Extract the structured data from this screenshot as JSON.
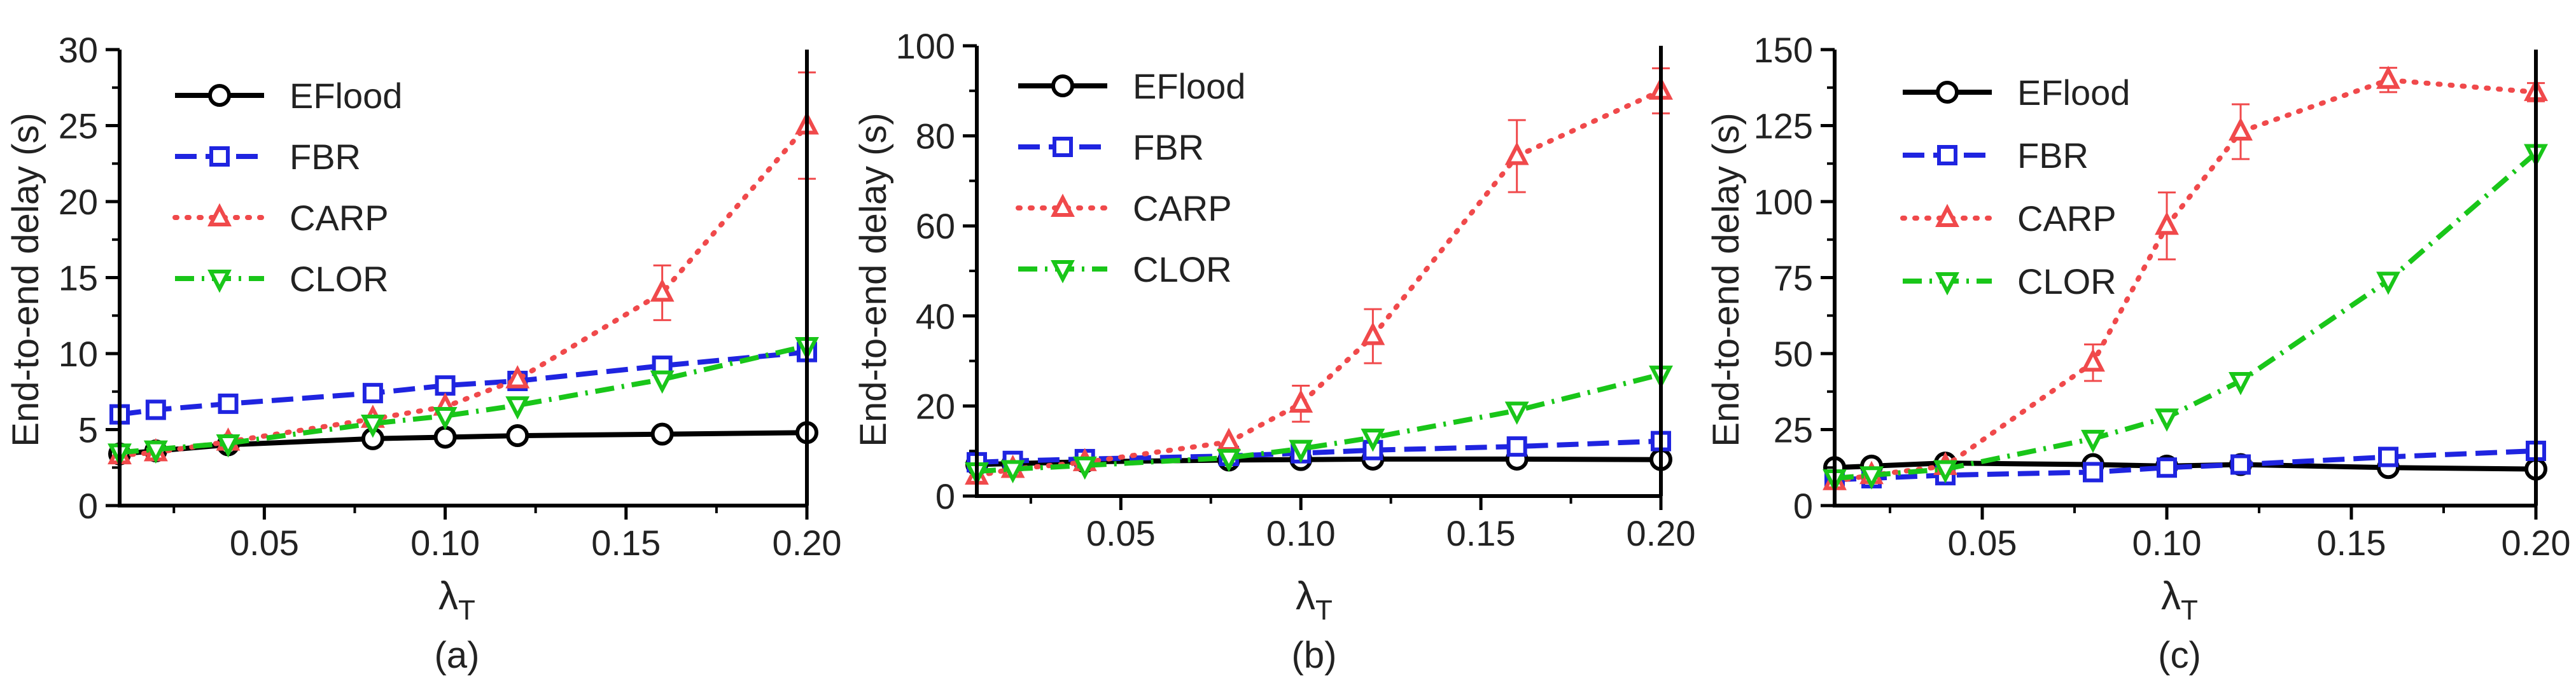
{
  "colors": {
    "EFlood": "#000000",
    "FBR": "#1f24e0",
    "CARP": "#f0494b",
    "CLOR": "#19c619",
    "axis": "#000000"
  },
  "chart_data": [
    {
      "type": "line",
      "panel_label": "(a)",
      "xlabel": "λ",
      "xlabel_sub": "T",
      "ylabel": "End-to-end delay (s)",
      "xlim": [
        0.01,
        0.2
      ],
      "ylim": [
        0,
        30
      ],
      "xticks": [
        0.05,
        0.1,
        0.15,
        0.2
      ],
      "xtick_labels": [
        "0.05",
        "0.10",
        "0.15",
        "0.20"
      ],
      "yticks": [
        0,
        5,
        10,
        15,
        20,
        25,
        30
      ],
      "ytick_labels": [
        "0",
        "5",
        "10",
        "15",
        "20",
        "25",
        "30"
      ],
      "legend_position": "top-left",
      "x": [
        0.01,
        0.02,
        0.04,
        0.08,
        0.1,
        0.12,
        0.16,
        0.2
      ],
      "series": [
        {
          "name": "EFlood",
          "marker": "circle",
          "dash": "solid",
          "values": [
            3.4,
            3.6,
            4.0,
            4.4,
            4.5,
            4.6,
            4.7,
            4.8
          ],
          "errors": [
            0,
            0,
            0,
            0,
            0,
            0,
            0,
            0
          ]
        },
        {
          "name": "FBR",
          "marker": "square",
          "dash": "dashed",
          "values": [
            6.0,
            6.3,
            6.7,
            7.4,
            7.9,
            8.2,
            9.2,
            10.1
          ],
          "errors": [
            0,
            0,
            0,
            0,
            0,
            0,
            0,
            0
          ]
        },
        {
          "name": "CARP",
          "marker": "triangle-up",
          "dash": "dotted",
          "values": [
            3.3,
            3.5,
            4.2,
            5.7,
            6.5,
            8.3,
            14.0,
            25.0
          ],
          "errors": [
            0,
            0,
            0,
            0,
            0,
            0,
            1.8,
            3.5
          ]
        },
        {
          "name": "CLOR",
          "marker": "triangle-down",
          "dash": "dashdot",
          "values": [
            3.5,
            3.7,
            4.1,
            5.4,
            5.9,
            6.6,
            8.3,
            10.5
          ],
          "errors": [
            0,
            0,
            0,
            0,
            0,
            0,
            0,
            0
          ]
        }
      ]
    },
    {
      "type": "line",
      "panel_label": "(b)",
      "xlabel": "λ",
      "xlabel_sub": "T",
      "ylabel": "End-to-end delay (s)",
      "xlim": [
        0.01,
        0.2
      ],
      "ylim": [
        0,
        100
      ],
      "xticks": [
        0.05,
        0.1,
        0.15,
        0.2
      ],
      "xtick_labels": [
        "0.05",
        "0.10",
        "0.15",
        "0.20"
      ],
      "yticks": [
        0,
        20,
        40,
        60,
        80,
        100
      ],
      "ytick_labels": [
        "0",
        "20",
        "40",
        "60",
        "80",
        "100"
      ],
      "legend_position": "top-left",
      "x": [
        0.01,
        0.02,
        0.04,
        0.08,
        0.1,
        0.12,
        0.16,
        0.2
      ],
      "series": [
        {
          "name": "EFlood",
          "marker": "circle",
          "dash": "solid",
          "values": [
            7.0,
            7.2,
            7.6,
            8.0,
            8.1,
            8.2,
            8.2,
            8.1
          ],
          "errors": [
            0,
            0,
            0,
            0,
            0,
            0,
            0,
            0
          ]
        },
        {
          "name": "FBR",
          "marker": "square",
          "dash": "dashed",
          "values": [
            7.5,
            7.8,
            8.2,
            8.9,
            9.5,
            10.2,
            11.0,
            12.2
          ],
          "errors": [
            0,
            0,
            0,
            0,
            0,
            0,
            0,
            0
          ]
        },
        {
          "name": "CARP",
          "marker": "triangle-up",
          "dash": "dotted",
          "values": [
            4.5,
            6.0,
            7.5,
            12.0,
            20.5,
            35.5,
            75.5,
            90.0
          ],
          "errors": [
            0,
            0,
            0,
            0,
            4.0,
            6.0,
            8.0,
            5.0
          ]
        },
        {
          "name": "CLOR",
          "marker": "triangle-down",
          "dash": "dashdot",
          "values": [
            5.5,
            6.0,
            6.8,
            8.5,
            10.5,
            13.0,
            19.0,
            27.0
          ],
          "errors": [
            0,
            0,
            0,
            0,
            0,
            0,
            0,
            0
          ]
        }
      ]
    },
    {
      "type": "line",
      "panel_label": "(c)",
      "xlabel": "λ",
      "xlabel_sub": "T",
      "ylabel": "End-to-end delay (s)",
      "xlim": [
        0.01,
        0.2
      ],
      "ylim": [
        0,
        150
      ],
      "xticks": [
        0.05,
        0.1,
        0.15,
        0.2
      ],
      "xtick_labels": [
        "0.05",
        "0.10",
        "0.15",
        "0.20"
      ],
      "yticks": [
        0,
        25,
        50,
        75,
        100,
        125,
        150
      ],
      "ytick_labels": [
        "0",
        "25",
        "50",
        "75",
        "100",
        "125",
        "150"
      ],
      "legend_position": "top-left",
      "x": [
        0.01,
        0.02,
        0.04,
        0.08,
        0.1,
        0.12,
        0.16,
        0.2
      ],
      "series": [
        {
          "name": "EFlood",
          "marker": "circle",
          "dash": "solid",
          "values": [
            12.5,
            13.0,
            14.0,
            13.5,
            13.0,
            13.5,
            12.5,
            12.0
          ],
          "errors": [
            0,
            0,
            0,
            0,
            0,
            0,
            0,
            0
          ]
        },
        {
          "name": "FBR",
          "marker": "square",
          "dash": "dashed",
          "values": [
            8.5,
            9.0,
            10.0,
            11.0,
            12.5,
            13.5,
            16.0,
            18.0
          ],
          "errors": [
            0,
            0,
            0,
            0,
            0,
            0,
            0,
            0
          ]
        },
        {
          "name": "CARP",
          "marker": "triangle-up",
          "dash": "dotted",
          "values": [
            8.0,
            10.0,
            13.0,
            47.0,
            92.0,
            123.0,
            140.0,
            136.0
          ],
          "errors": [
            0,
            0,
            0,
            6.0,
            11.0,
            9.0,
            4.0,
            3.0
          ]
        },
        {
          "name": "CLOR",
          "marker": "triangle-down",
          "dash": "dashdot",
          "values": [
            9.0,
            10.0,
            12.0,
            22.0,
            29.0,
            41.0,
            74.0,
            116.0
          ],
          "errors": [
            0,
            0,
            0,
            0,
            0,
            0,
            0,
            0
          ]
        }
      ]
    }
  ]
}
